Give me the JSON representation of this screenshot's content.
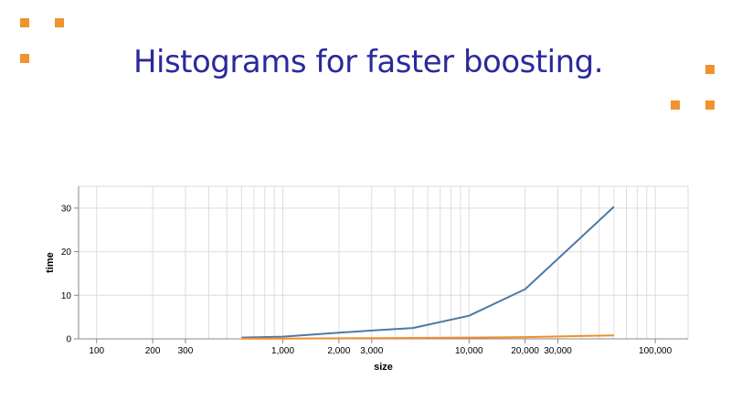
{
  "slide": {
    "title": "Histograms for faster boosting.",
    "accent_color": "#f0922e",
    "title_color": "#2a2a9c"
  },
  "chart_data": {
    "type": "line",
    "xlabel": "size",
    "ylabel": "time",
    "x_scale": "log",
    "xlim": [
      80,
      150000
    ],
    "ylim": [
      0,
      35
    ],
    "grid": true,
    "x_tick_labels": [
      {
        "value": 100,
        "label": "100"
      },
      {
        "value": 200,
        "label": "200"
      },
      {
        "value": 300,
        "label": "300"
      },
      {
        "value": 1000,
        "label": "1,000"
      },
      {
        "value": 2000,
        "label": "2,000"
      },
      {
        "value": 3000,
        "label": "3,000"
      },
      {
        "value": 10000,
        "label": "10,000"
      },
      {
        "value": 20000,
        "label": "20,000"
      },
      {
        "value": 30000,
        "label": "30,000"
      },
      {
        "value": 100000,
        "label": "100,000"
      }
    ],
    "y_ticks": [
      0,
      10,
      20,
      30
    ],
    "x_grid_values": [
      100,
      200,
      300,
      400,
      500,
      600,
      700,
      800,
      900,
      1000,
      2000,
      3000,
      4000,
      5000,
      6000,
      7000,
      8000,
      9000,
      10000,
      20000,
      30000,
      40000,
      50000,
      60000,
      70000,
      80000,
      90000,
      100000
    ],
    "series": [
      {
        "color": "#4e79a7",
        "x": [
          600,
          1000,
          2000,
          3000,
          5000,
          10000,
          20000,
          60000
        ],
        "y": [
          0.3,
          0.5,
          1.4,
          1.9,
          2.5,
          5.3,
          11.4,
          30.3
        ]
      },
      {
        "color": "#f28e2b",
        "x": [
          600,
          1000,
          2000,
          3000,
          5000,
          10000,
          20000,
          60000
        ],
        "y": [
          0.05,
          0.07,
          0.12,
          0.15,
          0.2,
          0.3,
          0.4,
          0.8
        ]
      }
    ]
  }
}
